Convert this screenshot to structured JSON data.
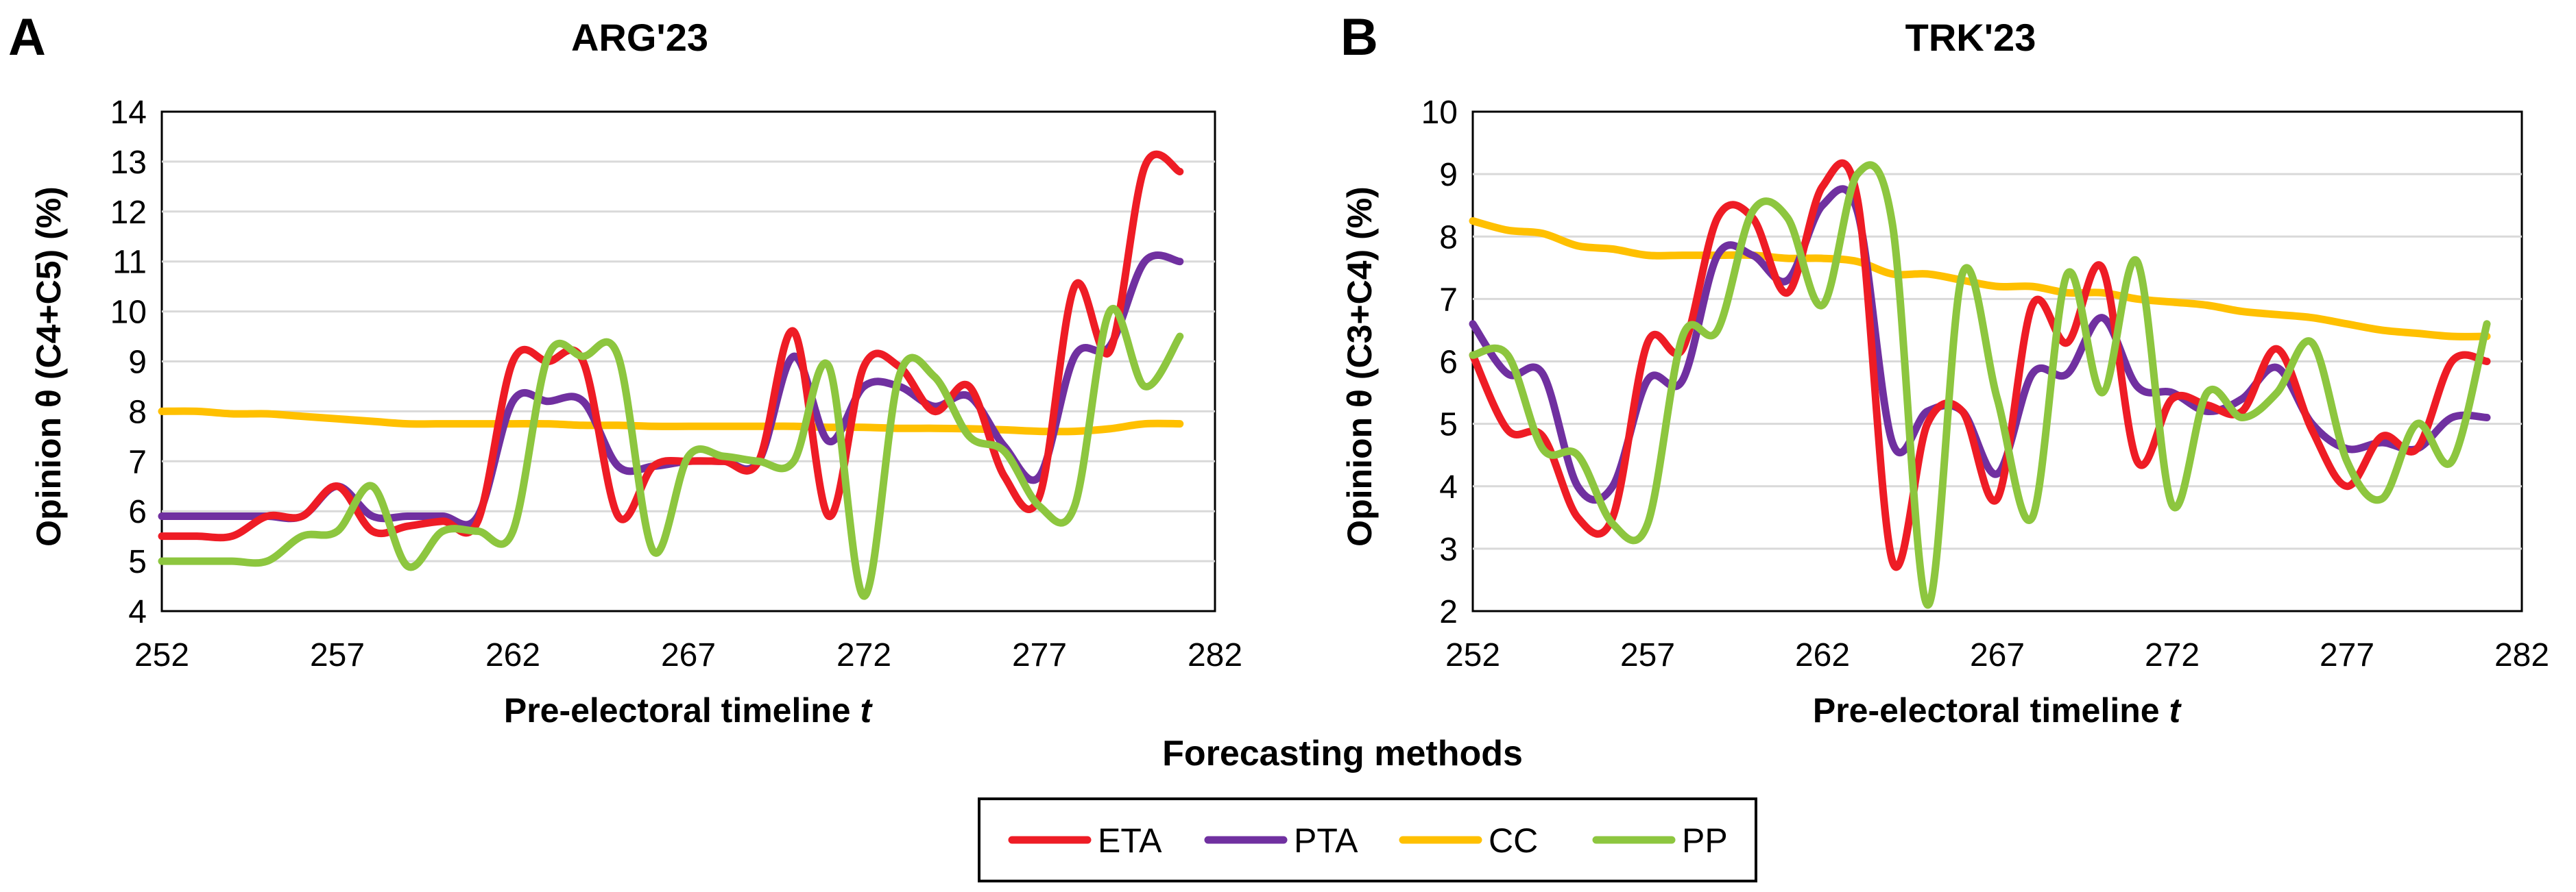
{
  "figure_title": "Forecasting methods",
  "legend": [
    {
      "name": "ETA",
      "color": "#EE1C25"
    },
    {
      "name": "PTA",
      "color": "#7030A0"
    },
    {
      "name": "CC",
      "color": "#FFC000"
    },
    {
      "name": "PP",
      "color": "#8DC63F"
    }
  ],
  "chart_data": [
    {
      "panel_label": "A",
      "type": "line",
      "title": "ARG'23",
      "xlabel_main": "Pre-electoral timeline ",
      "xlabel_var": "t",
      "ylabel": "Opinion θ (C4+C5) (%)",
      "xlim": [
        252,
        282
      ],
      "ylim": [
        4,
        14
      ],
      "xticks": [
        252,
        257,
        262,
        267,
        272,
        277,
        282
      ],
      "yticks": [
        4,
        5,
        6,
        7,
        8,
        9,
        10,
        11,
        12,
        13,
        14
      ],
      "grid": true,
      "x": [
        252,
        253,
        254,
        255,
        256,
        257,
        258,
        259,
        260,
        261,
        262,
        263,
        264,
        265,
        266,
        267,
        268,
        269,
        270,
        271,
        272,
        273,
        274,
        275,
        276,
        277,
        278,
        279,
        280,
        281
      ],
      "series": [
        {
          "name": "ETA",
          "color": "#EE1C25",
          "values": [
            5.5,
            5.5,
            5.5,
            5.9,
            5.9,
            6.5,
            5.6,
            5.7,
            5.8,
            5.8,
            9.0,
            9.0,
            9.0,
            5.9,
            6.9,
            7.0,
            7.0,
            7.0,
            9.6,
            5.9,
            8.9,
            8.9,
            8.0,
            8.5,
            6.7,
            6.3,
            10.5,
            9.2,
            12.9,
            12.8
          ]
        },
        {
          "name": "PTA",
          "color": "#7030A0",
          "values": [
            5.9,
            5.9,
            5.9,
            5.9,
            5.9,
            6.5,
            5.9,
            5.9,
            5.9,
            5.9,
            8.2,
            8.2,
            8.2,
            6.9,
            6.9,
            7.0,
            7.0,
            7.0,
            9.1,
            7.4,
            8.5,
            8.5,
            8.1,
            8.3,
            7.3,
            6.7,
            9.1,
            9.3,
            11.0,
            11.0
          ]
        },
        {
          "name": "CC",
          "color": "#FFC000",
          "values": [
            8.0,
            8.0,
            7.95,
            7.95,
            7.9,
            7.85,
            7.8,
            7.75,
            7.75,
            7.75,
            7.75,
            7.75,
            7.72,
            7.72,
            7.7,
            7.7,
            7.7,
            7.7,
            7.7,
            7.68,
            7.68,
            7.66,
            7.66,
            7.65,
            7.63,
            7.6,
            7.6,
            7.65,
            7.75,
            7.75
          ]
        },
        {
          "name": "PP",
          "color": "#8DC63F",
          "values": [
            5.0,
            5.0,
            5.0,
            5.0,
            5.5,
            5.6,
            6.5,
            4.9,
            5.6,
            5.6,
            5.6,
            9.1,
            9.1,
            9.1,
            5.2,
            7.1,
            7.1,
            7.0,
            7.0,
            8.9,
            4.3,
            8.7,
            8.7,
            7.5,
            7.2,
            6.1,
            6.1,
            10.0,
            8.5,
            9.5
          ]
        }
      ]
    },
    {
      "panel_label": "B",
      "type": "line",
      "title": "TRK'23",
      "xlabel_main": "Pre-electoral timeline ",
      "xlabel_var": "t",
      "ylabel": "Opinion θ (C3+C4) (%)",
      "xlim": [
        252,
        282
      ],
      "ylim": [
        2,
        10
      ],
      "xticks": [
        252,
        257,
        262,
        267,
        272,
        277,
        282
      ],
      "yticks": [
        2,
        3,
        4,
        5,
        6,
        7,
        8,
        9,
        10
      ],
      "grid": true,
      "x": [
        252,
        253,
        254,
        255,
        256,
        257,
        258,
        259,
        260,
        261,
        262,
        263,
        264,
        265,
        266,
        267,
        268,
        269,
        270,
        271,
        272,
        273,
        274,
        275,
        276,
        277,
        278,
        279,
        280,
        281
      ],
      "series": [
        {
          "name": "ETA",
          "color": "#EE1C25",
          "values": [
            6.1,
            4.9,
            4.8,
            3.5,
            3.5,
            6.3,
            6.2,
            8.3,
            8.3,
            7.1,
            8.8,
            8.6,
            2.8,
            5.0,
            5.2,
            3.8,
            6.9,
            6.3,
            7.5,
            4.4,
            5.4,
            5.3,
            5.2,
            6.2,
            4.9,
            4.0,
            4.8,
            4.6,
            6.0,
            6.0
          ]
        },
        {
          "name": "PTA",
          "color": "#7030A0",
          "values": [
            6.6,
            5.8,
            5.8,
            4.0,
            4.0,
            5.7,
            5.7,
            7.7,
            7.7,
            7.3,
            8.5,
            8.4,
            4.7,
            5.2,
            5.2,
            4.2,
            5.8,
            5.8,
            6.7,
            5.6,
            5.5,
            5.2,
            5.4,
            5.9,
            5.0,
            4.6,
            4.7,
            4.6,
            5.1,
            5.1
          ]
        },
        {
          "name": "CC",
          "color": "#FFC000",
          "values": [
            8.25,
            8.1,
            8.05,
            7.85,
            7.8,
            7.7,
            7.7,
            7.7,
            7.7,
            7.65,
            7.65,
            7.6,
            7.4,
            7.4,
            7.3,
            7.2,
            7.2,
            7.1,
            7.1,
            7.0,
            6.95,
            6.9,
            6.8,
            6.75,
            6.7,
            6.6,
            6.5,
            6.45,
            6.4,
            6.4
          ]
        },
        {
          "name": "PP",
          "color": "#8DC63F",
          "values": [
            6.1,
            6.1,
            4.6,
            4.5,
            3.4,
            3.4,
            6.4,
            6.5,
            8.4,
            8.3,
            6.9,
            9.0,
            8.2,
            2.1,
            7.4,
            5.4,
            3.5,
            7.4,
            5.5,
            7.6,
            3.7,
            5.5,
            5.1,
            5.5,
            6.3,
            4.4,
            3.8,
            5.0,
            4.4,
            6.6
          ]
        }
      ]
    }
  ]
}
